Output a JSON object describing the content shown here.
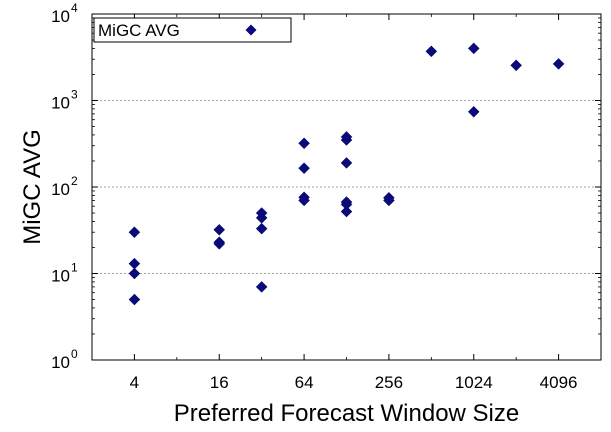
{
  "chart_data": {
    "type": "scatter",
    "title": "",
    "xlabel": "Preferred Forecast Window Size",
    "ylabel": "MiGC AVG",
    "x_scale": "log2",
    "y_scale": "log10",
    "xlim": [
      2,
      8192
    ],
    "ylim": [
      1,
      10000
    ],
    "x_ticks": [
      {
        "value": 4,
        "label": "4"
      },
      {
        "value": 16,
        "label": "16"
      },
      {
        "value": 64,
        "label": "64"
      },
      {
        "value": 256,
        "label": "256"
      },
      {
        "value": 1024,
        "label": "1024"
      },
      {
        "value": 4096,
        "label": "4096"
      }
    ],
    "y_ticks": [
      {
        "value": 1,
        "base": "10",
        "exp": "0"
      },
      {
        "value": 10,
        "base": "10",
        "exp": "1"
      },
      {
        "value": 100,
        "base": "10",
        "exp": "2"
      },
      {
        "value": 1000,
        "base": "10",
        "exp": "3"
      },
      {
        "value": 10000,
        "base": "10",
        "exp": "4"
      }
    ],
    "grid": "y-major-dashed",
    "legend": {
      "position": "top-left"
    },
    "series": [
      {
        "name": "MiGC AVG",
        "color": "#0a0a78",
        "marker": "diamond",
        "points": [
          {
            "x": 4,
            "y": 30
          },
          {
            "x": 4,
            "y": 13
          },
          {
            "x": 4,
            "y": 10
          },
          {
            "x": 4,
            "y": 5
          },
          {
            "x": 16,
            "y": 32
          },
          {
            "x": 16,
            "y": 23
          },
          {
            "x": 16,
            "y": 22
          },
          {
            "x": 32,
            "y": 50
          },
          {
            "x": 32,
            "y": 44
          },
          {
            "x": 32,
            "y": 33
          },
          {
            "x": 32,
            "y": 7
          },
          {
            "x": 64,
            "y": 320
          },
          {
            "x": 64,
            "y": 165
          },
          {
            "x": 64,
            "y": 76
          },
          {
            "x": 64,
            "y": 70
          },
          {
            "x": 128,
            "y": 380
          },
          {
            "x": 128,
            "y": 350
          },
          {
            "x": 128,
            "y": 190
          },
          {
            "x": 128,
            "y": 67
          },
          {
            "x": 128,
            "y": 63
          },
          {
            "x": 128,
            "y": 52
          },
          {
            "x": 256,
            "y": 75
          },
          {
            "x": 256,
            "y": 70
          },
          {
            "x": 512,
            "y": 3700
          },
          {
            "x": 1024,
            "y": 4000
          },
          {
            "x": 1024,
            "y": 740
          },
          {
            "x": 2048,
            "y": 2550
          },
          {
            "x": 4096,
            "y": 2650
          }
        ]
      }
    ]
  }
}
